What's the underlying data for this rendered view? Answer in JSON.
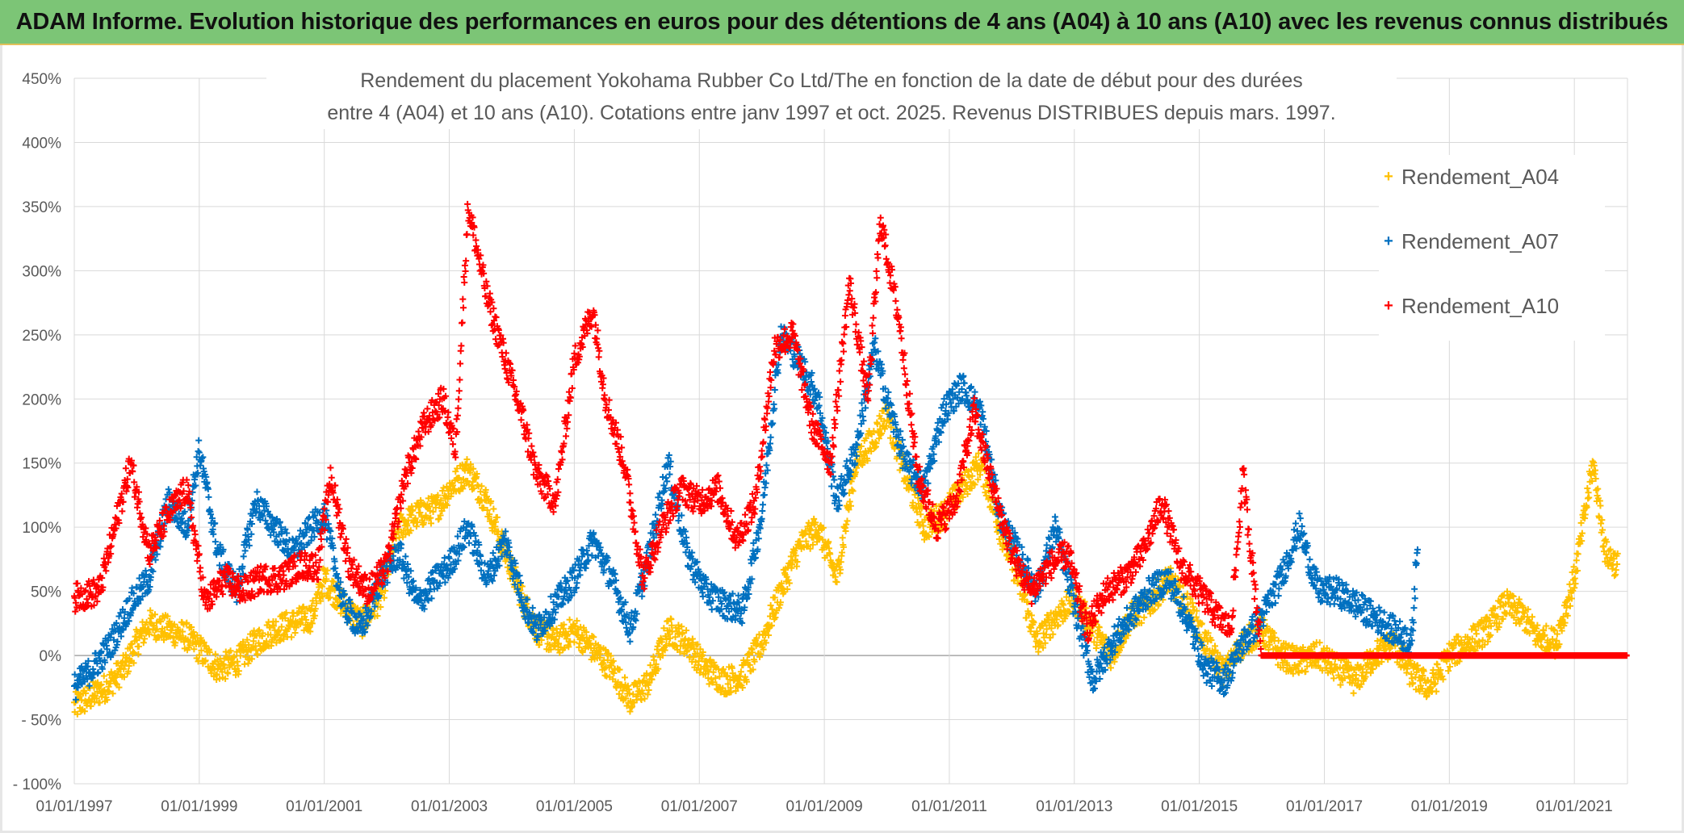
{
  "banner": {
    "title": "ADAM Informe. Evolution historique des performances en euros pour des détentions de 4 ans (A04) à 10 ans (A10) avec les revenus connus distribués"
  },
  "chart_data": {
    "type": "scatter",
    "title_line1": "Rendement du placement Yokohama Rubber Co Ltd/The en fonction de la date de début pour des durées",
    "title_line2": "entre 4 (A04) et 10 ans (A10). Cotations entre janv 1997 et oct. 2025. Revenus DISTRIBUES depuis mars. 1997.",
    "xlabel": "",
    "ylabel": "",
    "xlim": [
      1997.0,
      2021.85
    ],
    "ylim": [
      -100,
      450
    ],
    "y_ticks": [
      450,
      400,
      350,
      300,
      250,
      200,
      150,
      100,
      50,
      0,
      -50,
      -100
    ],
    "y_tick_labels": [
      "450%",
      "400%",
      "350%",
      "300%",
      "250%",
      "200%",
      "150%",
      "100%",
      "50%",
      "0%",
      "- 50%",
      "- 100%"
    ],
    "x_ticks": [
      1997,
      1999,
      2001,
      2003,
      2005,
      2007,
      2009,
      2011,
      2013,
      2015,
      2017,
      2019,
      2021
    ],
    "x_tick_labels": [
      "01/01/1997",
      "01/01/1999",
      "01/01/2001",
      "01/01/2003",
      "01/01/2005",
      "01/01/2007",
      "01/01/2009",
      "01/01/2011",
      "01/01/2013",
      "01/01/2015",
      "01/01/2017",
      "01/01/2019",
      "01/01/2021"
    ],
    "grid": true,
    "legend_position": "top-right",
    "marker": "+",
    "series": [
      {
        "name": "Rendement_A04",
        "color": "#ffc000",
        "x": [
          1997.0,
          1997.5,
          1997.8,
          1998.0,
          1998.2,
          1998.5,
          1998.8,
          1999.0,
          1999.3,
          1999.6,
          1999.9,
          2000.2,
          2000.5,
          2000.8,
          2001.0,
          2001.3,
          2001.6,
          2001.9,
          2002.2,
          2002.5,
          2002.8,
          2003.0,
          2003.3,
          2003.6,
          2003.9,
          2004.2,
          2004.4,
          2004.7,
          2005.0,
          2005.3,
          2005.6,
          2005.9,
          2006.2,
          2006.5,
          2006.8,
          2007.1,
          2007.4,
          2007.7,
          2008.0,
          2008.3,
          2008.6,
          2008.9,
          2009.2,
          2009.5,
          2009.8,
          2010.0,
          2010.3,
          2010.6,
          2010.9,
          2011.2,
          2011.5,
          2011.8,
          2012.1,
          2012.4,
          2012.7,
          2013.0,
          2013.3,
          2013.6,
          2013.9,
          2014.2,
          2014.5,
          2014.8,
          2015.1,
          2015.4,
          2015.7,
          2016.0,
          2016.3,
          2016.6,
          2016.9,
          2017.2,
          2017.5,
          2017.8,
          2018.1,
          2018.4,
          2018.7,
          2019.0,
          2019.3,
          2019.6,
          2019.9,
          2020.2,
          2020.4,
          2020.7,
          2021.0,
          2021.3,
          2021.5,
          2021.7
        ],
        "y": [
          -40,
          -25,
          -10,
          10,
          25,
          20,
          15,
          5,
          -10,
          -5,
          10,
          20,
          25,
          30,
          60,
          40,
          25,
          45,
          100,
          110,
          115,
          130,
          145,
          120,
          80,
          40,
          20,
          10,
          20,
          5,
          -10,
          -35,
          -20,
          20,
          10,
          -10,
          -20,
          -15,
          10,
          50,
          85,
          100,
          60,
          150,
          170,
          190,
          140,
          100,
          110,
          130,
          150,
          100,
          60,
          10,
          30,
          45,
          20,
          0,
          30,
          40,
          60,
          40,
          10,
          -15,
          10,
          20,
          0,
          -5,
          0,
          -10,
          -20,
          0,
          10,
          -15,
          -25,
          0,
          10,
          20,
          40,
          30,
          15,
          10,
          60,
          150,
          80,
          70
        ]
      },
      {
        "name": "Rendement_A07",
        "color": "#0070c0",
        "x": [
          1997.0,
          1997.3,
          1997.6,
          1997.9,
          1998.2,
          1998.5,
          1998.8,
          1999.0,
          1999.3,
          1999.6,
          1999.9,
          2000.2,
          2000.5,
          2000.8,
          2001.0,
          2001.3,
          2001.6,
          2001.9,
          2002.2,
          2002.5,
          2002.8,
          2003.0,
          2003.3,
          2003.6,
          2003.9,
          2004.2,
          2004.4,
          2004.7,
          2005.0,
          2005.3,
          2005.6,
          2005.9,
          2006.2,
          2006.5,
          2006.8,
          2007.1,
          2007.4,
          2007.7,
          2008.0,
          2008.3,
          2008.6,
          2008.9,
          2009.2,
          2009.5,
          2009.8,
          2010.0,
          2010.3,
          2010.6,
          2010.9,
          2011.2,
          2011.5,
          2011.8,
          2012.1,
          2012.4,
          2012.7,
          2013.0,
          2013.3,
          2013.6,
          2013.9,
          2014.2,
          2014.5,
          2014.8,
          2015.1,
          2015.4,
          2015.7,
          2016.0,
          2016.3,
          2016.6,
          2016.9,
          2017.2,
          2017.5,
          2017.8,
          2018.1,
          2018.4,
          2018.5
        ],
        "y": [
          -25,
          -10,
          10,
          40,
          60,
          120,
          100,
          160,
          80,
          50,
          120,
          100,
          80,
          100,
          110,
          40,
          20,
          60,
          80,
          40,
          60,
          70,
          100,
          60,
          90,
          40,
          20,
          40,
          60,
          90,
          60,
          20,
          80,
          150,
          80,
          50,
          40,
          35,
          110,
          250,
          230,
          200,
          120,
          160,
          240,
          200,
          150,
          130,
          190,
          210,
          190,
          110,
          80,
          50,
          100,
          40,
          -20,
          10,
          30,
          50,
          60,
          30,
          -10,
          -20,
          10,
          30,
          60,
          100,
          50,
          50,
          40,
          30,
          20,
          10,
          100
        ]
      },
      {
        "name": "Rendement_A10",
        "color": "#ff0000",
        "x": [
          1997.0,
          1997.4,
          1997.7,
          1997.9,
          1998.2,
          1998.5,
          1998.8,
          1999.1,
          1999.4,
          1999.7,
          2000.0,
          2000.3,
          2000.6,
          2000.9,
          2001.1,
          2001.4,
          2001.7,
          2002.0,
          2002.3,
          2002.6,
          2002.9,
          2003.1,
          2003.3,
          2003.6,
          2003.9,
          2004.2,
          2004.4,
          2004.7,
          2005.0,
          2005.3,
          2005.5,
          2005.8,
          2006.1,
          2006.4,
          2006.7,
          2007.0,
          2007.3,
          2007.6,
          2007.9,
          2008.2,
          2008.5,
          2008.8,
          2009.1,
          2009.4,
          2009.7,
          2009.9,
          2010.2,
          2010.5,
          2010.8,
          2011.1,
          2011.4,
          2011.7,
          2012.0,
          2012.3,
          2012.6,
          2012.9,
          2013.2,
          2013.5,
          2013.8,
          2014.1,
          2014.4,
          2014.7,
          2015.0,
          2015.3,
          2015.5,
          2015.7,
          2016.0,
          2017.0,
          2018.0,
          2019.0,
          2020.0,
          2021.0,
          2021.85
        ],
        "y": [
          45,
          50,
          110,
          150,
          80,
          110,
          130,
          40,
          60,
          50,
          60,
          60,
          70,
          70,
          140,
          70,
          50,
          70,
          140,
          180,
          200,
          160,
          350,
          280,
          230,
          180,
          140,
          120,
          230,
          270,
          200,
          150,
          60,
          100,
          130,
          120,
          130,
          90,
          120,
          240,
          250,
          180,
          150,
          290,
          200,
          340,
          260,
          140,
          100,
          120,
          190,
          130,
          80,
          50,
          70,
          80,
          20,
          50,
          60,
          80,
          120,
          70,
          50,
          30,
          20,
          140,
          0,
          0,
          0,
          0,
          0,
          0,
          0
        ]
      }
    ]
  }
}
